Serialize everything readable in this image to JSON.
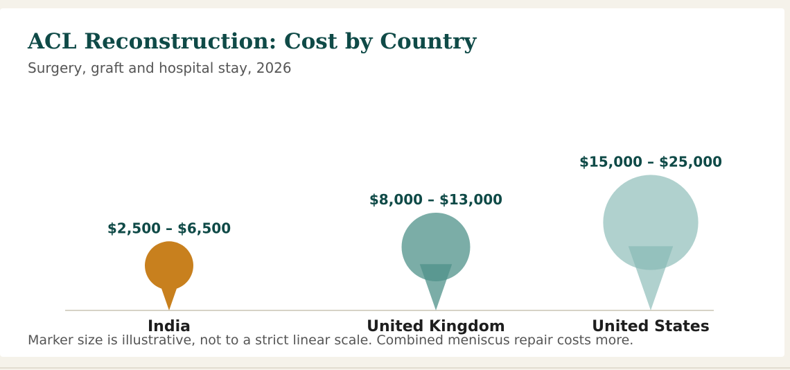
{
  "chart_data": {
    "type": "pin",
    "title": "ACL Reconstruction: Cost by Country",
    "subtitle": "Surgery, graft and hospital stay, 2026",
    "categories": [
      "India",
      "United Kingdom",
      "United States"
    ],
    "low": [
      2500,
      8000,
      15000
    ],
    "high": [
      6500,
      13000,
      25000
    ],
    "value_labels": [
      "$2,500 – $6,500",
      "$8,000 – $13,000",
      "$15,000 – $25,000"
    ],
    "colors": [
      "#c8801e",
      "#4f918a",
      "#86b8b3"
    ],
    "footnote": "Marker size is illustrative, not to a strict linear scale. Combined meniscus repair costs more."
  }
}
